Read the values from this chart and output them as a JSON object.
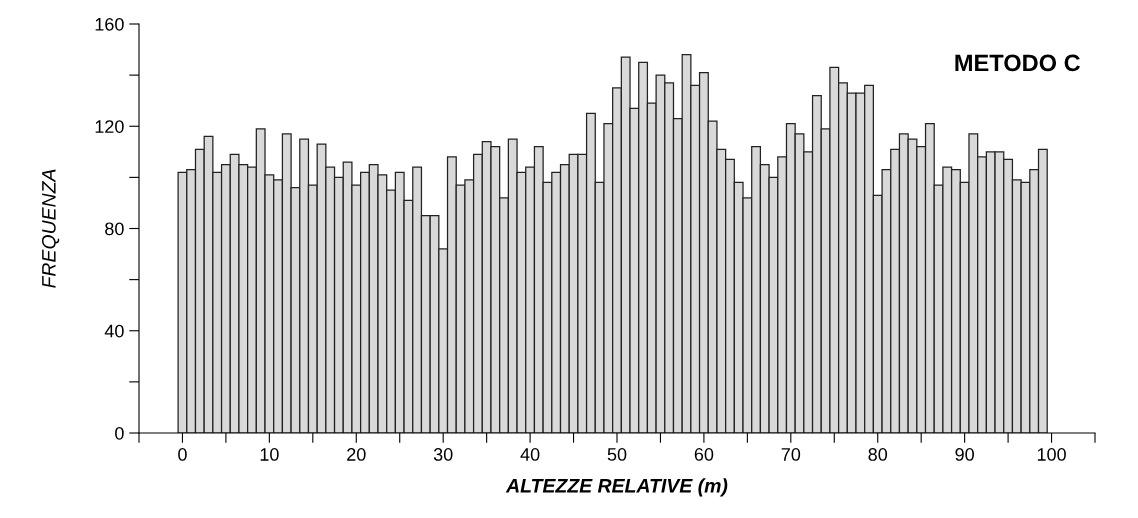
{
  "chart_data": {
    "type": "histogram",
    "title": "METODO C",
    "xlabel": "ALTEZZE RELATIVE (m)",
    "ylabel": "FREQUENZA",
    "bins": [
      -0.5,
      0.5,
      1.5,
      2.5,
      3.5,
      4.5,
      5.5,
      6.5,
      7.5,
      8.5,
      9.5,
      10.5,
      11.5,
      12.5,
      13.5,
      14.5,
      15.5,
      16.5,
      17.5,
      18.5,
      19.5,
      20.5,
      21.5,
      22.5,
      23.5,
      24.5,
      25.5,
      26.5,
      27.5,
      28.5,
      29.5,
      30.5,
      31.5,
      32.5,
      33.5,
      34.5,
      35.5,
      36.5,
      37.5,
      38.5,
      39.5,
      40.5,
      41.5,
      42.5,
      43.5,
      44.5,
      45.5,
      46.5,
      47.5,
      48.5,
      49.5,
      50.5,
      51.5,
      52.5,
      53.5,
      54.5,
      55.5,
      56.5,
      57.5,
      58.5,
      59.5,
      60.5,
      61.5,
      62.5,
      63.5,
      64.5,
      65.5,
      66.5,
      67.5,
      68.5,
      69.5,
      70.5,
      71.5,
      72.5,
      73.5,
      74.5,
      75.5,
      76.5,
      77.5,
      78.5,
      79.5,
      80.5,
      81.5,
      82.5,
      83.5,
      84.5,
      85.5,
      86.5,
      87.5,
      88.5,
      89.5,
      90.5,
      91.5,
      92.5,
      93.5,
      94.5,
      95.5,
      96.5,
      97.5,
      98.5,
      99.5
    ],
    "values": [
      102,
      103,
      111,
      116,
      102,
      105,
      109,
      105,
      104,
      119,
      101,
      99,
      117,
      96,
      115,
      97,
      113,
      104,
      100,
      106,
      97,
      102,
      105,
      101,
      95,
      102,
      91,
      104,
      85,
      85,
      72,
      108,
      97,
      99,
      109,
      114,
      112,
      92,
      115,
      102,
      104,
      112,
      98,
      102,
      105,
      109,
      109,
      125,
      98,
      121,
      135,
      147,
      127,
      145,
      129,
      140,
      137,
      123,
      148,
      136,
      141,
      122,
      111,
      107,
      98,
      92,
      112,
      105,
      100,
      108,
      121,
      117,
      110,
      132,
      119,
      143,
      137,
      133,
      133,
      136,
      93,
      103,
      111,
      117,
      115,
      112,
      121,
      97,
      104,
      103,
      98,
      117,
      108,
      110,
      110,
      107,
      99,
      98,
      103,
      111
    ],
    "color": "#d9d9d9",
    "xlim": [
      -5,
      105
    ],
    "xticks": [
      {
        "value": -5,
        "label": null
      },
      0,
      {
        "value": 5,
        "label": null
      },
      10,
      {
        "value": 15,
        "label": null
      },
      20,
      {
        "value": 25,
        "label": null
      },
      30,
      {
        "value": 35,
        "label": null
      },
      40,
      {
        "value": 45,
        "label": null
      },
      50,
      {
        "value": 55,
        "label": null
      },
      60,
      {
        "value": 65,
        "label": null
      },
      70,
      {
        "value": 75,
        "label": null
      },
      80,
      {
        "value": 85,
        "label": null
      },
      90,
      {
        "value": 95,
        "label": null
      },
      100,
      {
        "value": 105,
        "label": null
      }
    ],
    "ylim": [
      0,
      160
    ],
    "yticks": [
      0,
      {
        "value": 20,
        "label": null
      },
      40,
      {
        "value": 60,
        "label": null
      },
      80,
      {
        "value": 100,
        "label": null
      },
      120,
      {
        "value": 140,
        "label": null
      },
      160
    ],
    "grid": false,
    "legend": false
  }
}
